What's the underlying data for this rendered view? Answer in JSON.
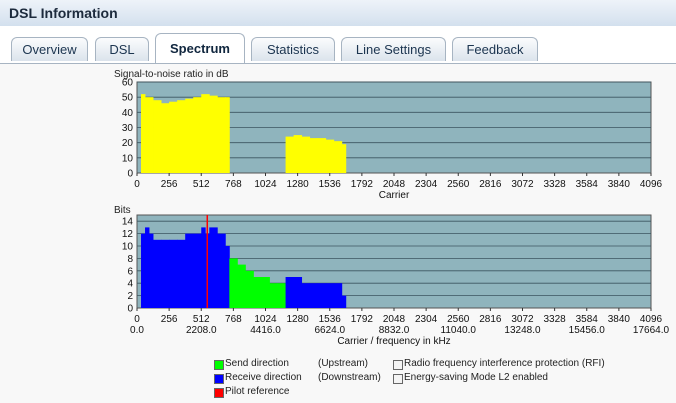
{
  "window": {
    "title": "DSL Information"
  },
  "tabs": [
    {
      "label": "Overview",
      "active": false
    },
    {
      "label": "DSL",
      "active": false
    },
    {
      "label": "Spectrum",
      "active": true
    },
    {
      "label": "Statistics",
      "active": false
    },
    {
      "label": "Line Settings",
      "active": false
    },
    {
      "label": "Feedback",
      "active": false
    }
  ],
  "colors": {
    "snr": "#ffff00",
    "upstream": "#00ff00",
    "downstream": "#0000ff",
    "pilot": "#ff0000",
    "plot_bg": "#8fb4bd"
  },
  "chart_data": [
    {
      "type": "area",
      "title": "Signal-to-noise ratio in dB",
      "xlabel": "Carrier",
      "ylabel": "",
      "xlim": [
        0,
        4096
      ],
      "ylim": [
        0,
        60
      ],
      "xticks": [
        "0",
        "256",
        "512",
        "768",
        "1024",
        "1280",
        "1536",
        "1792",
        "2048",
        "2304",
        "2560",
        "2816",
        "3072",
        "3328",
        "3584",
        "3840",
        "4096"
      ],
      "yticks": [
        "0",
        "10",
        "20",
        "30",
        "40",
        "50",
        "60"
      ],
      "grid": true,
      "series": [
        {
          "color": "#ffff00",
          "segments": [
            {
              "x": [
                32,
                64,
                128,
                192,
                256,
                320,
                384,
                448,
                512,
                576,
                640,
                704
              ],
              "y": [
                52,
                50,
                48,
                46,
                47,
                48,
                49,
                50,
                52,
                51,
                50,
                50
              ]
            },
            {
              "x": [
                1184,
                1248,
                1312,
                1376,
                1440,
                1504,
                1568,
                1632
              ],
              "y": [
                24,
                25,
                24,
                23,
                23,
                22,
                21,
                19
              ]
            }
          ]
        }
      ]
    },
    {
      "type": "bar",
      "title": "Bits",
      "xlabel": "Carrier / frequency in kHz",
      "ylabel": "",
      "xlim": [
        0,
        4096
      ],
      "ylim": [
        0,
        15
      ],
      "xticks_top": [
        "0",
        "256",
        "512",
        "768",
        "1024",
        "1280",
        "1536",
        "1792",
        "2048",
        "2304",
        "2560",
        "2816",
        "3072",
        "3328",
        "3584",
        "3840",
        "4096"
      ],
      "xticks_bottom": [
        "0.0",
        "2208.0",
        "4416.0",
        "6624.0",
        "8832.0",
        "11040.0",
        "13248.0",
        "15456.0",
        "17664.0"
      ],
      "yticks": [
        "0",
        "2",
        "4",
        "6",
        "8",
        "10",
        "12",
        "14"
      ],
      "grid": true,
      "series": [
        {
          "name": "Receive direction",
          "color": "#0000ff",
          "x": [
            32,
            64,
            96,
            128,
            192,
            256,
            320,
            384,
            448,
            512,
            544,
            576,
            640,
            704
          ],
          "y": [
            12,
            13,
            12,
            11,
            11,
            11,
            11,
            12,
            12,
            13,
            12,
            13,
            12,
            10
          ]
        },
        {
          "name": "Send direction",
          "color": "#00ff00",
          "x": [
            736,
            800,
            864,
            928,
            992,
            1056,
            1120,
            1184
          ],
          "y": [
            8,
            7,
            6,
            5,
            5,
            4,
            4,
            3
          ]
        },
        {
          "name": "Receive direction",
          "color": "#0000ff",
          "x": [
            1184,
            1248,
            1312,
            1376,
            1440,
            1504,
            1568,
            1632
          ],
          "y": [
            5,
            5,
            4,
            4,
            4,
            4,
            4,
            2
          ]
        }
      ],
      "pilot_carrier": 560
    }
  ],
  "legend": [
    {
      "color": "#00ff00",
      "label": "Send direction",
      "dir": "(Upstream)",
      "check_label": "Radio frequency interference protection (RFI)"
    },
    {
      "color": "#0000ff",
      "label": "Receive direction",
      "dir": "(Downstream)",
      "check_label": "Energy-saving Mode L2 enabled"
    },
    {
      "color": "#ff0000",
      "label": "Pilot reference",
      "dir": "",
      "check_label": ""
    }
  ]
}
